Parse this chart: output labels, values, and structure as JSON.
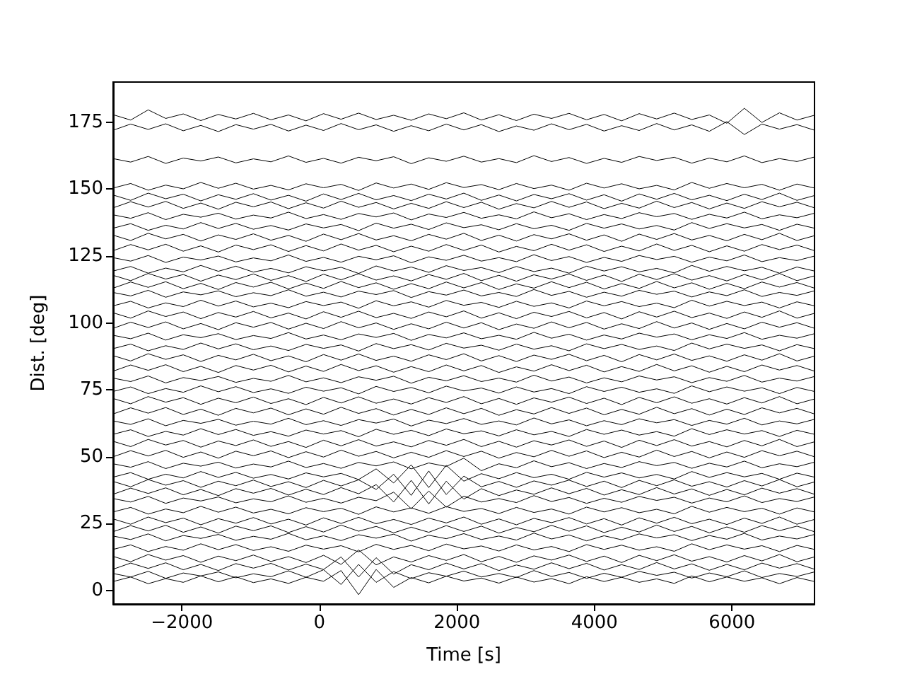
{
  "chart_data": {
    "type": "line",
    "xlabel": "Time [s]",
    "ylabel": "Dist. [deg]",
    "marker": "none",
    "line_style": "solid",
    "xlim": [
      -3000,
      7200
    ],
    "xticks": [
      {
        "value": -2000,
        "label": "−2000"
      },
      0,
      2000,
      4000,
      6000
    ],
    "ylim": [
      -5,
      190
    ],
    "yticks": [
      0,
      25,
      50,
      75,
      100,
      125,
      150,
      175
    ],
    "x": [
      -3000,
      -2745,
      -2490,
      -2235,
      -1980,
      -1725,
      -1470,
      -1215,
      -960,
      -705,
      -450,
      -195,
      60,
      315,
      570,
      825,
      1080,
      1335,
      1590,
      1845,
      2100,
      2355,
      2610,
      2865,
      3120,
      3375,
      3630,
      3885,
      4140,
      4395,
      4650,
      4905,
      5160,
      5415,
      5670,
      5925,
      6180,
      6435,
      6690,
      6945,
      7200
    ],
    "series": [
      {
        "color": "#000000",
        "values": [
          177.8,
          175.8,
          179.6,
          176.4,
          178.1,
          175.6,
          177.9,
          176.2,
          178.3,
          175.9,
          177.7,
          175.5,
          178.2,
          176.1,
          178.4,
          176,
          177.6,
          175.7,
          178.1,
          176.3,
          178.5,
          175.8,
          177.8,
          175.6,
          178,
          176.4,
          178.3,
          175.9,
          177.9,
          175.5,
          178.2,
          176.2,
          178.4,
          176,
          177.7,
          174.6,
          180.2,
          174.9,
          178.5,
          175.8,
          177.6
        ]
      },
      {
        "color": "#000000",
        "values": [
          172,
          174.3,
          172.3,
          174.4,
          171.8,
          173.8,
          171.5,
          174.1,
          172.4,
          174.2,
          171.7,
          173.9,
          171.9,
          174.5,
          172.2,
          174,
          171.6,
          173.7,
          171.8,
          174.3,
          172.1,
          174.1,
          171.5,
          173.6,
          172,
          174.4,
          172.2,
          174.2,
          171.7,
          173.7,
          171.9,
          174.5,
          172.1,
          174,
          171.6,
          175.2,
          170.4,
          174.3,
          172.4,
          174.1,
          172
        ]
      },
      {
        "color": "#000000",
        "values": [
          161.4,
          160.1,
          162.2,
          159.6,
          161.6,
          160.5,
          162,
          159.8,
          161.3,
          160.2,
          162.4,
          160,
          161.5,
          159.7,
          161.9,
          160.6,
          162.1,
          159.5,
          161.7,
          160.4,
          162.3,
          160.1,
          161.4,
          159.9,
          162.5,
          160.3,
          161.8,
          159.6,
          161.5,
          160,
          162.2,
          160.7,
          161.9,
          159.7,
          161.6,
          160.2,
          162.4,
          159.9,
          161.4,
          160.3,
          162
        ]
      },
      {
        "color": "#000000",
        "values": [
          150.4,
          152.1,
          149.6,
          151.5,
          150.1,
          152.5,
          150.3,
          152.2,
          150,
          151.4,
          149.7,
          152,
          150.5,
          151.8,
          149.5,
          152.3,
          150.4,
          151.9,
          149.9,
          152.4,
          150.6,
          151.7,
          149.8,
          152.1,
          150.2,
          151.5,
          149.6,
          152.2,
          150.4,
          152,
          150.1,
          151.4,
          149.7,
          152.5,
          150.3,
          152.1,
          150.5,
          151.8,
          149.6,
          151.9,
          150.4
        ]
      },
      {
        "color": "#000000",
        "values": [
          147.8,
          145.8,
          148.5,
          146.4,
          148.1,
          145.6,
          147.9,
          146.2,
          148.3,
          145.9,
          147.7,
          145.5,
          148.2,
          146.1,
          148.4,
          146,
          147.6,
          145.7,
          148.1,
          146.3,
          148.5,
          145.8,
          147.8,
          145.6,
          148,
          146.4,
          148.3,
          145.9,
          147.9,
          145.5,
          148.2,
          146.2,
          148.4,
          146,
          147.7,
          145.7,
          148.1,
          146.1,
          148.5,
          145.8,
          147.6
        ]
      },
      {
        "color": "#000000",
        "values": [
          143,
          145.3,
          143.3,
          145.4,
          142.8,
          144.8,
          142.5,
          145.1,
          143.4,
          145.2,
          142.7,
          144.9,
          142.9,
          145.5,
          143.2,
          145,
          142.6,
          144.7,
          142.8,
          145.3,
          143.1,
          145.1,
          142.5,
          144.6,
          143,
          145.4,
          143.2,
          145.2,
          142.7,
          144.7,
          142.9,
          145.5,
          143.1,
          145,
          142.6,
          144.8,
          142.8,
          145.3,
          143.4,
          145.1,
          143
        ]
      },
      {
        "color": "#000000",
        "values": [
          140.4,
          139.1,
          141.2,
          138.6,
          140.6,
          139.5,
          141,
          138.8,
          140.3,
          139.2,
          141.4,
          139,
          140.5,
          138.7,
          140.9,
          139.6,
          141.1,
          138.5,
          140.7,
          139.4,
          141.3,
          139.1,
          140.4,
          138.9,
          141.5,
          139.3,
          140.8,
          138.6,
          140.5,
          139,
          141.2,
          139.7,
          140.9,
          138.7,
          140.6,
          139.2,
          141.4,
          138.9,
          140.4,
          139.3,
          141
        ]
      },
      {
        "color": "#000000",
        "values": [
          135.4,
          137.1,
          134.6,
          136.5,
          135.1,
          137.5,
          135.3,
          137.2,
          135,
          136.4,
          134.7,
          137,
          135.5,
          136.8,
          134.5,
          137.3,
          135.4,
          136.9,
          134.9,
          137.4,
          135.6,
          136.7,
          134.8,
          137.1,
          135.2,
          136.5,
          134.6,
          137.2,
          135.4,
          137,
          135.1,
          136.4,
          134.7,
          137.5,
          135.3,
          137.1,
          135.5,
          136.8,
          134.6,
          136.9,
          135.4
        ]
      },
      {
        "color": "#000000",
        "values": [
          132.8,
          130.8,
          133.5,
          131.4,
          133.1,
          130.6,
          132.9,
          131.2,
          133.3,
          130.9,
          132.7,
          130.5,
          133.2,
          131.1,
          133.4,
          131,
          132.6,
          130.7,
          133.1,
          131.3,
          133.5,
          130.8,
          132.8,
          130.6,
          133,
          131.4,
          133.3,
          130.9,
          132.9,
          130.5,
          133.2,
          131.2,
          133.4,
          131,
          132.7,
          130.7,
          133.1,
          131.1,
          133.5,
          130.8,
          132.6
        ]
      },
      {
        "color": "#000000",
        "values": [
          127,
          129.3,
          127.3,
          129.4,
          126.8,
          128.8,
          126.5,
          129.1,
          127.4,
          129.2,
          126.7,
          128.9,
          126.9,
          129.5,
          127.2,
          129,
          126.6,
          128.7,
          126.8,
          129.3,
          127.1,
          129.1,
          126.5,
          128.6,
          127,
          129.4,
          127.2,
          129.2,
          126.7,
          128.7,
          126.9,
          129.5,
          127.1,
          129,
          126.6,
          128.8,
          126.8,
          129.3,
          127.4,
          129.1,
          127
        ]
      },
      {
        "color": "#000000",
        "values": [
          124.4,
          123.1,
          125.2,
          122.6,
          124.6,
          123.5,
          125,
          122.8,
          124.3,
          123.2,
          125.4,
          123,
          124.5,
          122.7,
          124.9,
          123.6,
          125.1,
          122.5,
          124.7,
          123.4,
          125.3,
          123.1,
          124.4,
          122.9,
          125.5,
          123.3,
          124.8,
          122.6,
          124.5,
          123,
          125.2,
          123.7,
          124.9,
          122.7,
          124.6,
          123.2,
          125.4,
          122.9,
          124.4,
          123.3,
          125
        ]
      },
      {
        "color": "#000000",
        "values": [
          119.4,
          121.1,
          118.6,
          120.5,
          119.1,
          121.5,
          119.3,
          121.2,
          119,
          120.4,
          118.7,
          121,
          119.5,
          120.8,
          118.5,
          121.3,
          119.4,
          120.9,
          118.9,
          121.4,
          119.6,
          120.7,
          118.8,
          121.1,
          119.2,
          120.5,
          118.6,
          121.2,
          119.4,
          121,
          119.1,
          120.4,
          118.7,
          121.5,
          119.3,
          121.1,
          119.5,
          120.8,
          118.6,
          120.9,
          119.4
        ]
      },
      {
        "color": "#000000",
        "values": [
          117.8,
          115.8,
          118.5,
          116.4,
          118.1,
          115.6,
          117.9,
          116.2,
          118.3,
          115.9,
          117.7,
          115.5,
          118.2,
          116.1,
          118.4,
          116,
          117.6,
          115.7,
          118.1,
          116.3,
          118.5,
          115.8,
          117.8,
          115.6,
          118,
          116.4,
          118.3,
          115.9,
          117.9,
          115.5,
          118.2,
          116.2,
          118.4,
          116,
          117.7,
          115.7,
          118.1,
          116.1,
          118.5,
          115.8,
          117.6
        ]
      },
      {
        "color": "#000000",
        "values": [
          113,
          115.3,
          113.3,
          115.4,
          112.8,
          114.8,
          112.5,
          115.1,
          113.4,
          115.2,
          112.7,
          114.9,
          112.9,
          115.5,
          113.2,
          115,
          112.6,
          114.7,
          112.8,
          115.3,
          113.1,
          115.1,
          112.5,
          114.6,
          113,
          115.4,
          113.2,
          115.2,
          112.7,
          114.7,
          112.9,
          115.5,
          113.1,
          115,
          112.6,
          114.8,
          112.8,
          115.3,
          113.4,
          115.1,
          113
        ]
      },
      {
        "color": "#000000",
        "values": [
          111.4,
          110.1,
          112.2,
          109.6,
          111.6,
          110.5,
          112,
          109.8,
          111.3,
          110.2,
          112.4,
          110,
          111.5,
          109.7,
          111.9,
          110.6,
          112.1,
          109.5,
          111.7,
          110.4,
          112.3,
          110.1,
          111.4,
          109.9,
          112.5,
          110.3,
          111.8,
          109.6,
          111.5,
          110,
          112.2,
          110.7,
          111.9,
          109.7,
          111.6,
          110.2,
          112.4,
          109.9,
          111.4,
          110.3,
          112
        ]
      },
      {
        "color": "#000000",
        "values": [
          106.4,
          108.1,
          105.6,
          107.5,
          106.1,
          108.5,
          106.3,
          108.2,
          106,
          107.4,
          105.7,
          108,
          106.5,
          107.8,
          105.5,
          108.3,
          106.4,
          107.9,
          105.9,
          108.4,
          106.6,
          107.7,
          105.8,
          108.1,
          106.2,
          107.5,
          105.6,
          108.2,
          106.4,
          108,
          106.1,
          107.4,
          105.7,
          108.5,
          106.3,
          108.1,
          106.5,
          107.8,
          105.6,
          107.9,
          106.4
        ]
      },
      {
        "color": "#000000",
        "values": [
          103.8,
          101.8,
          104.5,
          102.4,
          104.1,
          101.6,
          103.9,
          102.2,
          104.3,
          101.9,
          103.7,
          101.5,
          104.2,
          102.1,
          104.4,
          102,
          103.6,
          101.7,
          104.1,
          102.3,
          104.5,
          101.8,
          103.8,
          101.6,
          104,
          102.4,
          104.3,
          101.9,
          103.9,
          101.5,
          104.2,
          102.2,
          104.4,
          102,
          103.7,
          101.7,
          104.1,
          102.1,
          104.5,
          101.8,
          103.6
        ]
      },
      {
        "color": "#000000",
        "values": [
          98,
          100.3,
          98.3,
          100.4,
          97.8,
          99.8,
          97.5,
          100.1,
          98.4,
          100.2,
          97.7,
          99.9,
          97.9,
          100.5,
          98.2,
          100,
          97.6,
          99.7,
          97.8,
          100.3,
          98.1,
          100.1,
          97.5,
          99.6,
          98,
          100.4,
          98.2,
          100.2,
          97.7,
          99.7,
          97.9,
          100.5,
          98.1,
          100,
          97.6,
          99.8,
          97.8,
          100.3,
          98.4,
          100.1,
          98
        ]
      },
      {
        "color": "#000000",
        "values": [
          95.4,
          94.1,
          96.2,
          93.6,
          95.6,
          94.5,
          96,
          93.8,
          95.3,
          94.2,
          96.4,
          94,
          95.5,
          93.7,
          95.9,
          94.6,
          96.1,
          93.5,
          95.7,
          94.4,
          96.3,
          94.1,
          95.4,
          93.9,
          96.5,
          94.3,
          95.8,
          93.6,
          95.5,
          94,
          96.2,
          94.7,
          95.9,
          93.7,
          95.6,
          94.2,
          96.4,
          93.9,
          95.4,
          94.3,
          96
        ]
      },
      {
        "color": "#000000",
        "values": [
          90.4,
          92.1,
          89.6,
          91.5,
          90.1,
          92.5,
          90.3,
          92.2,
          90,
          91.4,
          89.7,
          92,
          90.5,
          91.8,
          89.5,
          92.3,
          90.4,
          91.9,
          89.9,
          92.4,
          90.6,
          91.7,
          89.8,
          92.1,
          90.2,
          91.5,
          89.6,
          92.2,
          90.4,
          92,
          90.1,
          91.4,
          89.7,
          92.5,
          90.3,
          92.1,
          90.5,
          91.8,
          89.6,
          91.9,
          90.4
        ]
      },
      {
        "color": "#000000",
        "values": [
          87.8,
          85.8,
          88.5,
          86.4,
          88.1,
          85.6,
          87.9,
          86.2,
          88.3,
          85.9,
          87.7,
          85.5,
          88.2,
          86.1,
          88.4,
          86,
          87.6,
          85.7,
          88.1,
          86.3,
          88.5,
          85.8,
          87.8,
          85.6,
          88,
          86.4,
          88.3,
          85.9,
          87.9,
          85.5,
          88.2,
          86.2,
          88.4,
          86,
          87.7,
          85.7,
          88.1,
          86.1,
          88.5,
          85.8,
          87.6
        ]
      },
      {
        "color": "#000000",
        "values": [
          82,
          84.3,
          82.3,
          84.4,
          81.8,
          83.8,
          81.5,
          84.1,
          82.4,
          84.2,
          81.7,
          83.9,
          81.9,
          84.5,
          82.2,
          84,
          81.6,
          83.7,
          81.8,
          84.3,
          82.1,
          84.1,
          81.5,
          83.6,
          82,
          84.4,
          82.2,
          84.2,
          81.7,
          83.7,
          81.9,
          84.5,
          82.1,
          84,
          81.6,
          83.8,
          81.8,
          84.3,
          82.4,
          84.1,
          82
        ]
      },
      {
        "color": "#000000",
        "values": [
          79.4,
          78.1,
          80.2,
          77.6,
          79.6,
          78.5,
          80,
          77.8,
          79.3,
          78.2,
          80.4,
          78,
          79.5,
          77.7,
          79.9,
          78.6,
          80.1,
          77.5,
          79.7,
          78.4,
          80.3,
          78.1,
          79.4,
          77.9,
          80.5,
          78.3,
          79.8,
          77.6,
          79.5,
          78,
          80.2,
          78.7,
          79.9,
          77.7,
          79.6,
          78.2,
          80.4,
          77.9,
          79.4,
          78.3,
          80
        ]
      },
      {
        "color": "#000000",
        "values": [
          74.4,
          76.1,
          73.6,
          75.5,
          74.1,
          76.5,
          74.3,
          76.2,
          74,
          75.4,
          73.7,
          76,
          74.5,
          75.8,
          73.5,
          76.3,
          74.4,
          75.9,
          73.9,
          76.4,
          74.6,
          75.7,
          73.8,
          76.1,
          74.2,
          75.5,
          73.6,
          76.2,
          74.4,
          76,
          74.1,
          75.4,
          73.7,
          76.5,
          74.3,
          76.1,
          74.5,
          75.8,
          73.6,
          75.9,
          74.4
        ]
      },
      {
        "color": "#000000",
        "values": [
          71.8,
          69.8,
          72.5,
          70.4,
          72.1,
          69.6,
          71.9,
          70.2,
          72.3,
          69.9,
          71.7,
          69.5,
          72.2,
          70.1,
          72.4,
          70,
          71.6,
          69.7,
          72.1,
          70.3,
          72.5,
          69.8,
          71.8,
          69.6,
          72,
          70.4,
          72.3,
          69.9,
          71.9,
          69.5,
          72.2,
          70.2,
          72.4,
          70,
          71.7,
          69.7,
          72.1,
          70.1,
          72.5,
          69.8,
          71.6
        ]
      },
      {
        "color": "#000000",
        "values": [
          66,
          68.3,
          66.3,
          68.4,
          65.8,
          67.8,
          65.5,
          68.1,
          66.4,
          68.2,
          65.7,
          67.9,
          65.9,
          68.5,
          66.2,
          68,
          65.6,
          67.7,
          65.8,
          68.3,
          66.1,
          68.1,
          65.5,
          67.6,
          66,
          68.4,
          66.2,
          68.2,
          65.7,
          67.7,
          65.9,
          68.5,
          66.1,
          68,
          65.6,
          67.8,
          65.8,
          68.3,
          66.4,
          68.1,
          66
        ]
      },
      {
        "color": "#000000",
        "values": [
          63.4,
          62.1,
          64.2,
          61.6,
          63.6,
          62.5,
          64,
          61.8,
          63.3,
          62.2,
          64.4,
          62,
          63.5,
          61.7,
          63.9,
          62.6,
          64.1,
          61.5,
          63.7,
          62.4,
          64.3,
          62.1,
          63.4,
          61.9,
          64.5,
          62.3,
          63.8,
          61.6,
          63.5,
          62,
          64.2,
          62.7,
          63.9,
          61.7,
          63.6,
          62.2,
          64.4,
          61.9,
          63.4,
          62.3,
          64
        ]
      },
      {
        "color": "#000000",
        "values": [
          58.4,
          60.1,
          57.6,
          59.5,
          58.1,
          60.5,
          58.3,
          60.2,
          58,
          59.4,
          57.7,
          60,
          58.5,
          59.8,
          57.5,
          60.3,
          58.4,
          59.9,
          57.9,
          60.4,
          58.6,
          59.7,
          57.8,
          60.1,
          58.2,
          59.5,
          57.6,
          60.2,
          58.4,
          60,
          58.1,
          59.4,
          57.7,
          60.5,
          58.3,
          60.1,
          58.5,
          59.8,
          57.6,
          59.9,
          58.4
        ]
      },
      {
        "color": "#000000",
        "values": [
          55.8,
          53.8,
          56.5,
          54.4,
          56.1,
          53.6,
          55.9,
          54.2,
          56.3,
          53.9,
          55.7,
          53.5,
          56.2,
          54.1,
          56.4,
          54,
          55.6,
          53.7,
          56.1,
          54.3,
          56.5,
          53.8,
          55.8,
          53.6,
          56,
          54.4,
          56.3,
          53.9,
          55.9,
          53.5,
          56.2,
          54.2,
          56.4,
          54,
          55.7,
          53.7,
          56.1,
          54.1,
          56.5,
          53.8,
          55.6
        ]
      },
      {
        "color": "#000000",
        "values": [
          50,
          52.3,
          50.3,
          52.4,
          49.8,
          51.8,
          49.5,
          52.1,
          50.4,
          52.2,
          49.7,
          51.9,
          49.9,
          52.5,
          50.2,
          52,
          49.6,
          51.7,
          49.8,
          52.3,
          50.1,
          52.1,
          49.5,
          51.6,
          50,
          52.4,
          50.2,
          52.2,
          49.7,
          51.7,
          49.9,
          52.5,
          50.1,
          52,
          49.6,
          51.8,
          49.8,
          52.3,
          50.4,
          52.1,
          50
        ]
      },
      {
        "color": "#000000",
        "values": [
          47.4,
          46.1,
          48.2,
          45.6,
          47.6,
          46.5,
          48,
          45.8,
          47.3,
          46.2,
          48.4,
          46,
          47.5,
          45.7,
          47.9,
          46.6,
          48.1,
          45.5,
          47.7,
          46.4,
          49.5,
          44.8,
          47.4,
          45.9,
          48.5,
          46.3,
          47.8,
          45.6,
          47.5,
          46,
          48.2,
          46.7,
          47.9,
          45.7,
          47.6,
          46.2,
          48.4,
          45.9,
          47.4,
          46.3,
          48
        ]
      },
      {
        "color": "#000000",
        "values": [
          42.4,
          44.1,
          41.6,
          43.5,
          42.1,
          44.5,
          42.3,
          44.2,
          42,
          43.4,
          41.7,
          44,
          42.5,
          43.8,
          41.5,
          45.5,
          40.2,
          47,
          38.5,
          46.8,
          40.9,
          43.7,
          41.8,
          44.1,
          42.2,
          43.5,
          41.6,
          44.2,
          42.4,
          44,
          42.1,
          43.4,
          41.7,
          44.5,
          42.3,
          44.1,
          42.5,
          43.8,
          41.6,
          43.9,
          42.4
        ]
      },
      {
        "color": "#000000",
        "values": [
          40.8,
          38.8,
          41.5,
          39.4,
          41.1,
          38.6,
          40.9,
          39.2,
          41.3,
          38.9,
          40.7,
          38.5,
          41.2,
          39.1,
          41.4,
          37.8,
          43.5,
          35.6,
          44.7,
          35.9,
          42.8,
          38.8,
          40.8,
          38.6,
          41,
          39.4,
          41.3,
          38.9,
          40.9,
          38.5,
          41.2,
          39.2,
          41.4,
          39,
          40.7,
          38.7,
          41.1,
          39.1,
          41.5,
          38.8,
          40.6
        ]
      },
      {
        "color": "#000000",
        "values": [
          36,
          38.3,
          36.3,
          38.4,
          35.8,
          37.8,
          35.5,
          38.1,
          36.4,
          38.2,
          35.7,
          37.9,
          35.9,
          38.5,
          36.2,
          39.6,
          33.1,
          41.2,
          32.4,
          40.9,
          34.2,
          38.1,
          35.5,
          37.6,
          36,
          38.4,
          36.2,
          38.2,
          35.7,
          37.7,
          35.9,
          38.5,
          36.1,
          38,
          35.6,
          37.8,
          35.8,
          38.3,
          36.4,
          38.1,
          36
        ]
      },
      {
        "color": "#000000",
        "values": [
          34.4,
          33.1,
          35.2,
          32.6,
          34.6,
          33.5,
          35,
          32.8,
          34.3,
          33.2,
          35.4,
          33,
          34.5,
          32.7,
          34.9,
          33.6,
          36.8,
          30.6,
          37.2,
          31.2,
          35.3,
          33.1,
          34.4,
          32.9,
          35.5,
          33.3,
          34.8,
          32.6,
          34.5,
          33,
          35.2,
          33.7,
          34.9,
          32.7,
          34.6,
          33.2,
          35.4,
          32.9,
          34.4,
          33.3,
          35
        ]
      },
      {
        "color": "#000000",
        "values": [
          29.4,
          31.1,
          28.6,
          30.5,
          29.1,
          31.5,
          29.3,
          31.2,
          29,
          30.4,
          28.7,
          31,
          29.5,
          30.8,
          28.5,
          31.3,
          29.4,
          30.9,
          28.9,
          31.4,
          29.6,
          30.7,
          28.8,
          31.1,
          29.2,
          30.5,
          28.6,
          31.2,
          29.4,
          31,
          29.1,
          30.4,
          28.7,
          31.5,
          29.3,
          31.1,
          29.5,
          30.8,
          28.6,
          30.9,
          29.4
        ]
      },
      {
        "color": "#000000",
        "values": [
          26.8,
          24.8,
          27.5,
          25.4,
          27.1,
          24.6,
          26.9,
          25.2,
          27.3,
          24.9,
          26.7,
          24.5,
          27.2,
          25.1,
          27.4,
          25,
          26.6,
          24.7,
          27.1,
          25.3,
          27.5,
          24.8,
          26.8,
          24.6,
          27,
          25.4,
          27.3,
          24.9,
          26.9,
          24.5,
          27.2,
          25.2,
          27.4,
          25,
          26.7,
          24.7,
          27.1,
          25.1,
          27.5,
          24.8,
          26.6
        ]
      },
      {
        "color": "#000000",
        "values": [
          22,
          24.3,
          22.3,
          24.4,
          21.8,
          23.8,
          21.5,
          24.1,
          22.4,
          24.2,
          21.7,
          23.9,
          21.9,
          24.5,
          22.2,
          24,
          21.6,
          23.7,
          21.8,
          24.3,
          22.1,
          24.1,
          21.5,
          23.6,
          22,
          24.4,
          22.2,
          24.2,
          21.7,
          23.7,
          21.9,
          24.5,
          22.1,
          24,
          21.6,
          23.8,
          21.8,
          24.3,
          22.4,
          24.1,
          22
        ]
      },
      {
        "color": "#000000",
        "values": [
          20.4,
          19.1,
          21.2,
          18.6,
          20.6,
          19.5,
          21,
          18.8,
          20.3,
          19.2,
          21.4,
          19,
          20.5,
          18.7,
          20.9,
          19.6,
          21.1,
          18.5,
          20.7,
          19.4,
          21.3,
          19.1,
          20.4,
          18.9,
          21.5,
          19.3,
          20.8,
          18.6,
          20.5,
          19,
          21.2,
          19.7,
          20.9,
          18.7,
          20.6,
          19.2,
          21.4,
          18.9,
          20.4,
          19.3,
          21
        ]
      },
      {
        "color": "#000000",
        "values": [
          15.4,
          17.1,
          14.6,
          16.5,
          15.1,
          17.5,
          15.3,
          17.2,
          15,
          16.4,
          14.7,
          17,
          15.5,
          16.8,
          14.5,
          17.3,
          15.4,
          16.9,
          14.9,
          17.4,
          15.6,
          16.7,
          14.8,
          17.1,
          15.2,
          16.5,
          14.6,
          17.2,
          15.4,
          17,
          15.1,
          16.4,
          14.7,
          17.5,
          15.3,
          17.1,
          15.5,
          16.8,
          14.6,
          16.9,
          15.4
        ]
      },
      {
        "color": "#000000",
        "values": [
          12.8,
          10.8,
          13.5,
          11.4,
          13.1,
          10.6,
          12.9,
          11.2,
          13.3,
          10.9,
          12.7,
          10.5,
          13.2,
          9.8,
          15.2,
          9.6,
          12.6,
          10.7,
          13.1,
          11.3,
          13.5,
          10.8,
          12.8,
          10.6,
          13,
          11.4,
          13.3,
          10.9,
          12.9,
          10.5,
          13.2,
          11.2,
          13.4,
          11,
          12.7,
          10.7,
          13.1,
          11.1,
          13.5,
          10.8,
          12.6
        ]
      },
      {
        "color": "#000000",
        "values": [
          8,
          10.3,
          8.3,
          10.4,
          7.8,
          9.8,
          7.5,
          10.1,
          8.4,
          10.2,
          7.7,
          9.9,
          7.9,
          12.6,
          5.1,
          12.3,
          6.2,
          9.7,
          7.8,
          10.3,
          8.1,
          10.1,
          7.5,
          9.6,
          8,
          10.4,
          8.2,
          10.2,
          7.7,
          9.7,
          7.9,
          10.5,
          8.1,
          10,
          7.6,
          9.8,
          7.8,
          10.3,
          8.4,
          10.1,
          8
        ]
      },
      {
        "color": "#000000",
        "values": [
          6.4,
          5.1,
          7.2,
          4.6,
          6.6,
          5.5,
          7,
          4.8,
          6.3,
          5.2,
          7.4,
          5,
          7.8,
          2.3,
          9.8,
          3.1,
          7.1,
          4.5,
          6.7,
          5.4,
          7.3,
          5.1,
          6.4,
          4.9,
          7.5,
          5.3,
          6.8,
          4.6,
          6.5,
          5,
          7.2,
          5.7,
          6.9,
          4.7,
          6.6,
          5.2,
          7.4,
          4.9,
          6.4,
          5.3,
          7
        ]
      },
      {
        "color": "#000000",
        "values": [
          3.4,
          5.1,
          2.6,
          4.5,
          3.1,
          5.5,
          3.3,
          5.2,
          3,
          4.4,
          2.7,
          5,
          3.5,
          7.5,
          -1.5,
          7.9,
          1.2,
          4.9,
          2.9,
          5.4,
          3.6,
          4.7,
          2.8,
          5.1,
          3.2,
          4.5,
          2.6,
          5.2,
          3.4,
          5,
          3.1,
          4.4,
          2.7,
          5.5,
          3.3,
          5.1,
          3.5,
          4.8,
          2.6,
          4.9,
          3.4
        ]
      }
    ]
  }
}
